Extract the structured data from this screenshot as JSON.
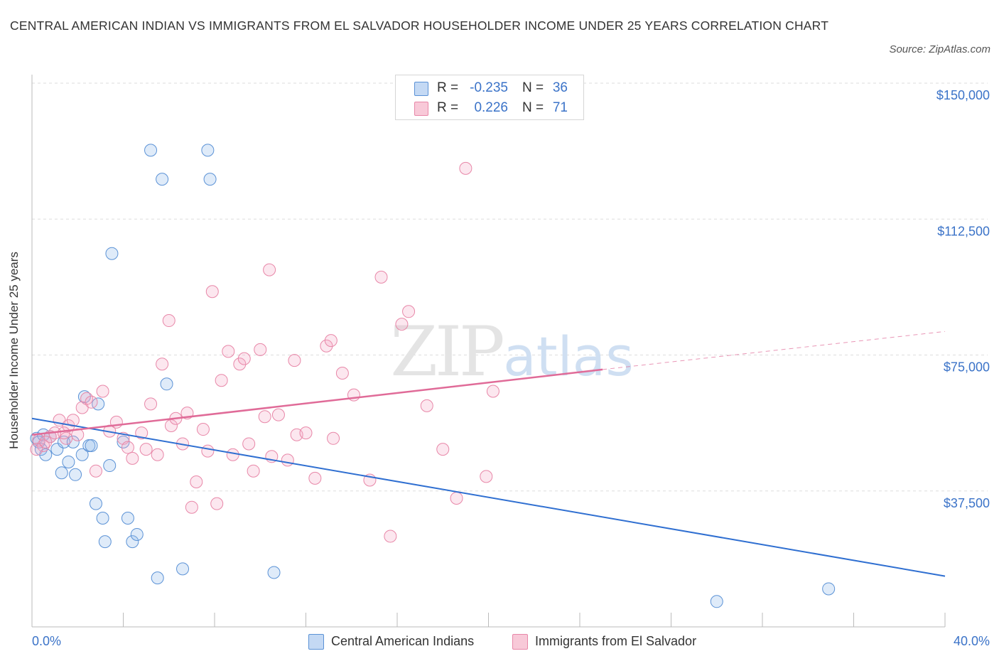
{
  "title": "CENTRAL AMERICAN INDIAN VS IMMIGRANTS FROM EL SALVADOR HOUSEHOLDER INCOME UNDER 25 YEARS CORRELATION CHART",
  "source": "Source: ZipAtlas.com",
  "watermark": {
    "zip": "ZIP",
    "atlas": "atlas"
  },
  "stats": {
    "blue": {
      "r_label": "R =",
      "r_value": "-0.235",
      "n_label": "N =",
      "n_value": "36"
    },
    "pink": {
      "r_label": "R =",
      "r_value": "0.226",
      "n_label": "N =",
      "n_value": "71"
    }
  },
  "chart_data": {
    "type": "scatter",
    "title": "CENTRAL AMERICAN INDIAN VS IMMIGRANTS FROM EL SALVADOR HOUSEHOLDER INCOME UNDER 25 YEARS CORRELATION CHART",
    "xlabel": "",
    "ylabel": "Householder Income Under 25 years",
    "xlim": [
      0,
      40
    ],
    "ylim": [
      0,
      150000
    ],
    "x_tick_labels": [
      "0.0%",
      "40.0%"
    ],
    "y_ticks": [
      37500,
      75000,
      112500,
      150000
    ],
    "y_tick_labels": [
      "$37,500",
      "$75,000",
      "$112,500",
      "$150,000"
    ],
    "grid": "horizontal dashed",
    "legend_position": "bottom-center",
    "colors": {
      "blue": "#5b92d6",
      "blue_line": "#2f6fd1",
      "pink": "#e887a8",
      "pink_line": "#e06b98",
      "tick_text": "#3b73c8"
    },
    "series": [
      {
        "name": "Central American Indians",
        "color": "#5b92d6",
        "trend": {
          "x": [
            0,
            40
          ],
          "y": [
            57500,
            14000
          ]
        },
        "points": [
          {
            "x": 0.2,
            "y": 52000
          },
          {
            "x": 0.3,
            "y": 51000
          },
          {
            "x": 0.4,
            "y": 49000
          },
          {
            "x": 0.5,
            "y": 53000
          },
          {
            "x": 0.6,
            "y": 47500
          },
          {
            "x": 0.8,
            "y": 52500
          },
          {
            "x": 1.1,
            "y": 49000
          },
          {
            "x": 1.3,
            "y": 42500
          },
          {
            "x": 1.4,
            "y": 51000
          },
          {
            "x": 1.6,
            "y": 45500
          },
          {
            "x": 1.9,
            "y": 42000
          },
          {
            "x": 1.8,
            "y": 51000
          },
          {
            "x": 2.2,
            "y": 47500
          },
          {
            "x": 2.3,
            "y": 63500
          },
          {
            "x": 2.5,
            "y": 50000
          },
          {
            "x": 2.6,
            "y": 50000
          },
          {
            "x": 2.8,
            "y": 34000
          },
          {
            "x": 2.9,
            "y": 61500
          },
          {
            "x": 3.1,
            "y": 30000
          },
          {
            "x": 3.2,
            "y": 23500
          },
          {
            "x": 3.4,
            "y": 44500
          },
          {
            "x": 3.5,
            "y": 103000
          },
          {
            "x": 4.0,
            "y": 51000
          },
          {
            "x": 4.2,
            "y": 30000
          },
          {
            "x": 4.4,
            "y": 23500
          },
          {
            "x": 4.6,
            "y": 25500
          },
          {
            "x": 5.2,
            "y": 131500
          },
          {
            "x": 5.5,
            "y": 13500
          },
          {
            "x": 5.7,
            "y": 123500
          },
          {
            "x": 5.9,
            "y": 67000
          },
          {
            "x": 6.6,
            "y": 16000
          },
          {
            "x": 7.7,
            "y": 131500
          },
          {
            "x": 7.8,
            "y": 123500
          },
          {
            "x": 10.6,
            "y": 15000
          },
          {
            "x": 30.0,
            "y": 7000
          },
          {
            "x": 34.9,
            "y": 10500
          }
        ]
      },
      {
        "name": "Immigrants from El Salvador",
        "color": "#e887a8",
        "trend": {
          "x": [
            0,
            25
          ],
          "y": [
            53000,
            71000
          ]
        },
        "trend_dashed": {
          "x": [
            25,
            40
          ],
          "y": [
            71000,
            81500
          ]
        },
        "points": [
          {
            "x": 0.3,
            "y": 51500
          },
          {
            "x": 0.5,
            "y": 50000
          },
          {
            "x": 0.8,
            "y": 52500
          },
          {
            "x": 1.0,
            "y": 53500
          },
          {
            "x": 1.2,
            "y": 57000
          },
          {
            "x": 1.5,
            "y": 52000
          },
          {
            "x": 1.6,
            "y": 55500
          },
          {
            "x": 1.8,
            "y": 57000
          },
          {
            "x": 2.0,
            "y": 53000
          },
          {
            "x": 2.2,
            "y": 60500
          },
          {
            "x": 2.4,
            "y": 63000
          },
          {
            "x": 2.6,
            "y": 62000
          },
          {
            "x": 2.8,
            "y": 43000
          },
          {
            "x": 3.1,
            "y": 65000
          },
          {
            "x": 3.4,
            "y": 54000
          },
          {
            "x": 3.7,
            "y": 56500
          },
          {
            "x": 4.0,
            "y": 52000
          },
          {
            "x": 4.2,
            "y": 49500
          },
          {
            "x": 4.4,
            "y": 46500
          },
          {
            "x": 4.8,
            "y": 53500
          },
          {
            "x": 5.0,
            "y": 49000
          },
          {
            "x": 5.2,
            "y": 61500
          },
          {
            "x": 5.5,
            "y": 47500
          },
          {
            "x": 5.7,
            "y": 72500
          },
          {
            "x": 6.0,
            "y": 84500
          },
          {
            "x": 6.1,
            "y": 55500
          },
          {
            "x": 6.3,
            "y": 57500
          },
          {
            "x": 6.6,
            "y": 50500
          },
          {
            "x": 6.8,
            "y": 59000
          },
          {
            "x": 7.0,
            "y": 33000
          },
          {
            "x": 7.2,
            "y": 40000
          },
          {
            "x": 7.5,
            "y": 54500
          },
          {
            "x": 7.7,
            "y": 48500
          },
          {
            "x": 7.9,
            "y": 92500
          },
          {
            "x": 8.1,
            "y": 34000
          },
          {
            "x": 8.3,
            "y": 68000
          },
          {
            "x": 8.6,
            "y": 76000
          },
          {
            "x": 8.8,
            "y": 47500
          },
          {
            "x": 9.1,
            "y": 72500
          },
          {
            "x": 9.3,
            "y": 74000
          },
          {
            "x": 9.5,
            "y": 50500
          },
          {
            "x": 9.7,
            "y": 43000
          },
          {
            "x": 10.0,
            "y": 76500
          },
          {
            "x": 10.2,
            "y": 58000
          },
          {
            "x": 10.4,
            "y": 98500
          },
          {
            "x": 10.5,
            "y": 47000
          },
          {
            "x": 10.8,
            "y": 58500
          },
          {
            "x": 11.2,
            "y": 46000
          },
          {
            "x": 11.5,
            "y": 73500
          },
          {
            "x": 11.6,
            "y": 53000
          },
          {
            "x": 12.0,
            "y": 53500
          },
          {
            "x": 12.4,
            "y": 41000
          },
          {
            "x": 12.9,
            "y": 77500
          },
          {
            "x": 13.1,
            "y": 79000
          },
          {
            "x": 13.2,
            "y": 52000
          },
          {
            "x": 13.6,
            "y": 70000
          },
          {
            "x": 14.1,
            "y": 64000
          },
          {
            "x": 14.8,
            "y": 40500
          },
          {
            "x": 15.3,
            "y": 96500
          },
          {
            "x": 15.7,
            "y": 25000
          },
          {
            "x": 16.2,
            "y": 83500
          },
          {
            "x": 16.5,
            "y": 87000
          },
          {
            "x": 17.3,
            "y": 61000
          },
          {
            "x": 18.0,
            "y": 49000
          },
          {
            "x": 18.6,
            "y": 35500
          },
          {
            "x": 19.0,
            "y": 126500
          },
          {
            "x": 19.9,
            "y": 41500
          },
          {
            "x": 20.2,
            "y": 65000
          },
          {
            "x": 0.2,
            "y": 49000
          },
          {
            "x": 0.6,
            "y": 51000
          },
          {
            "x": 1.4,
            "y": 53500
          }
        ]
      }
    ]
  }
}
